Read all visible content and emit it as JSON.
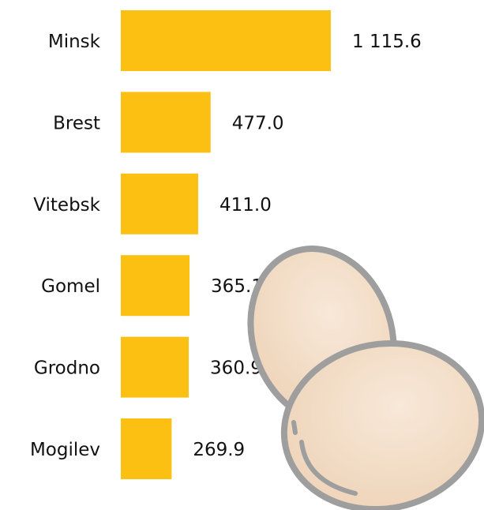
{
  "chart_data": {
    "type": "bar",
    "orientation": "horizontal",
    "categories": [
      "Minsk",
      "Brest",
      "Vitebsk",
      "Gomel",
      "Grodno",
      "Mogilev"
    ],
    "values": [
      1115.6,
      477.0,
      411.0,
      365.1,
      360.9,
      269.9
    ],
    "value_labels": [
      "1 115.6",
      "477.0",
      "411.0",
      "365.1",
      "360.9",
      "269.9"
    ],
    "color": "#fcc012"
  }
}
